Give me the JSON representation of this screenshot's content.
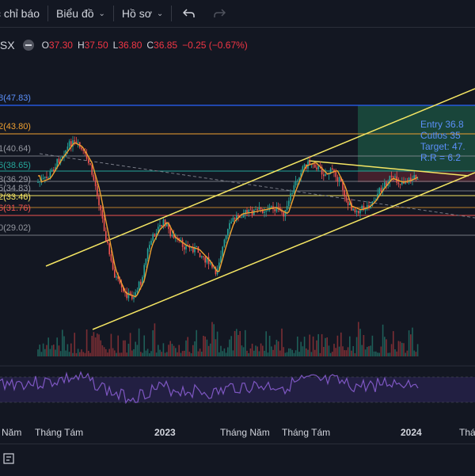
{
  "toolbar": {
    "indicators_label": "c chỉ báo",
    "chart_type_label": "Biểu đồ",
    "profile_label": "Hồ sơ",
    "undo_icon": "undo-icon",
    "redo_icon": "redo-icon"
  },
  "legend": {
    "symbol": "ISX",
    "open_key": "O",
    "open": "37.30",
    "high_key": "H",
    "high": "37.50",
    "low_key": "L",
    "low": "36.80",
    "close_key": "C",
    "close": "36.85",
    "change": "−0.25 (−0.67%)"
  },
  "fib_labels": [
    {
      "text": "8(47.83)",
      "color": "#5b8ff9"
    },
    {
      "text": "2(43.80)",
      "color": "#f0a030"
    },
    {
      "text": "1(40.64)",
      "color": "#9598a1"
    },
    {
      "text": "6(38.65)",
      "color": "#26a69a"
    },
    {
      "text": "8(36.29)",
      "color": "#9598a1"
    },
    {
      "text": "5(34.83)",
      "color": "#9598a1"
    },
    {
      "text": "2(33.46)",
      "color": "#f5e663"
    },
    {
      "text": "6(31.76)",
      "color": "#ef5350"
    },
    {
      "text": "0(29.02)",
      "color": "#9598a1"
    }
  ],
  "trade_box": {
    "entry": "Entry 36.8",
    "cutloss": "Cutlos 35",
    "target": "Target: 47.",
    "rr": "R:R = 6.2"
  },
  "x_axis": [
    "Năm",
    "Tháng Tám",
    "2023",
    "Tháng Năm",
    "Tháng Tám",
    "2024",
    "Tháng"
  ],
  "colors": {
    "background": "#131722",
    "up": "#26a69a",
    "down": "#ef5350",
    "channel": "#f5e663",
    "ma": "#f0a030",
    "rsi": "#7e57c2"
  },
  "icons": {
    "calculator": "calculator-icon"
  }
}
